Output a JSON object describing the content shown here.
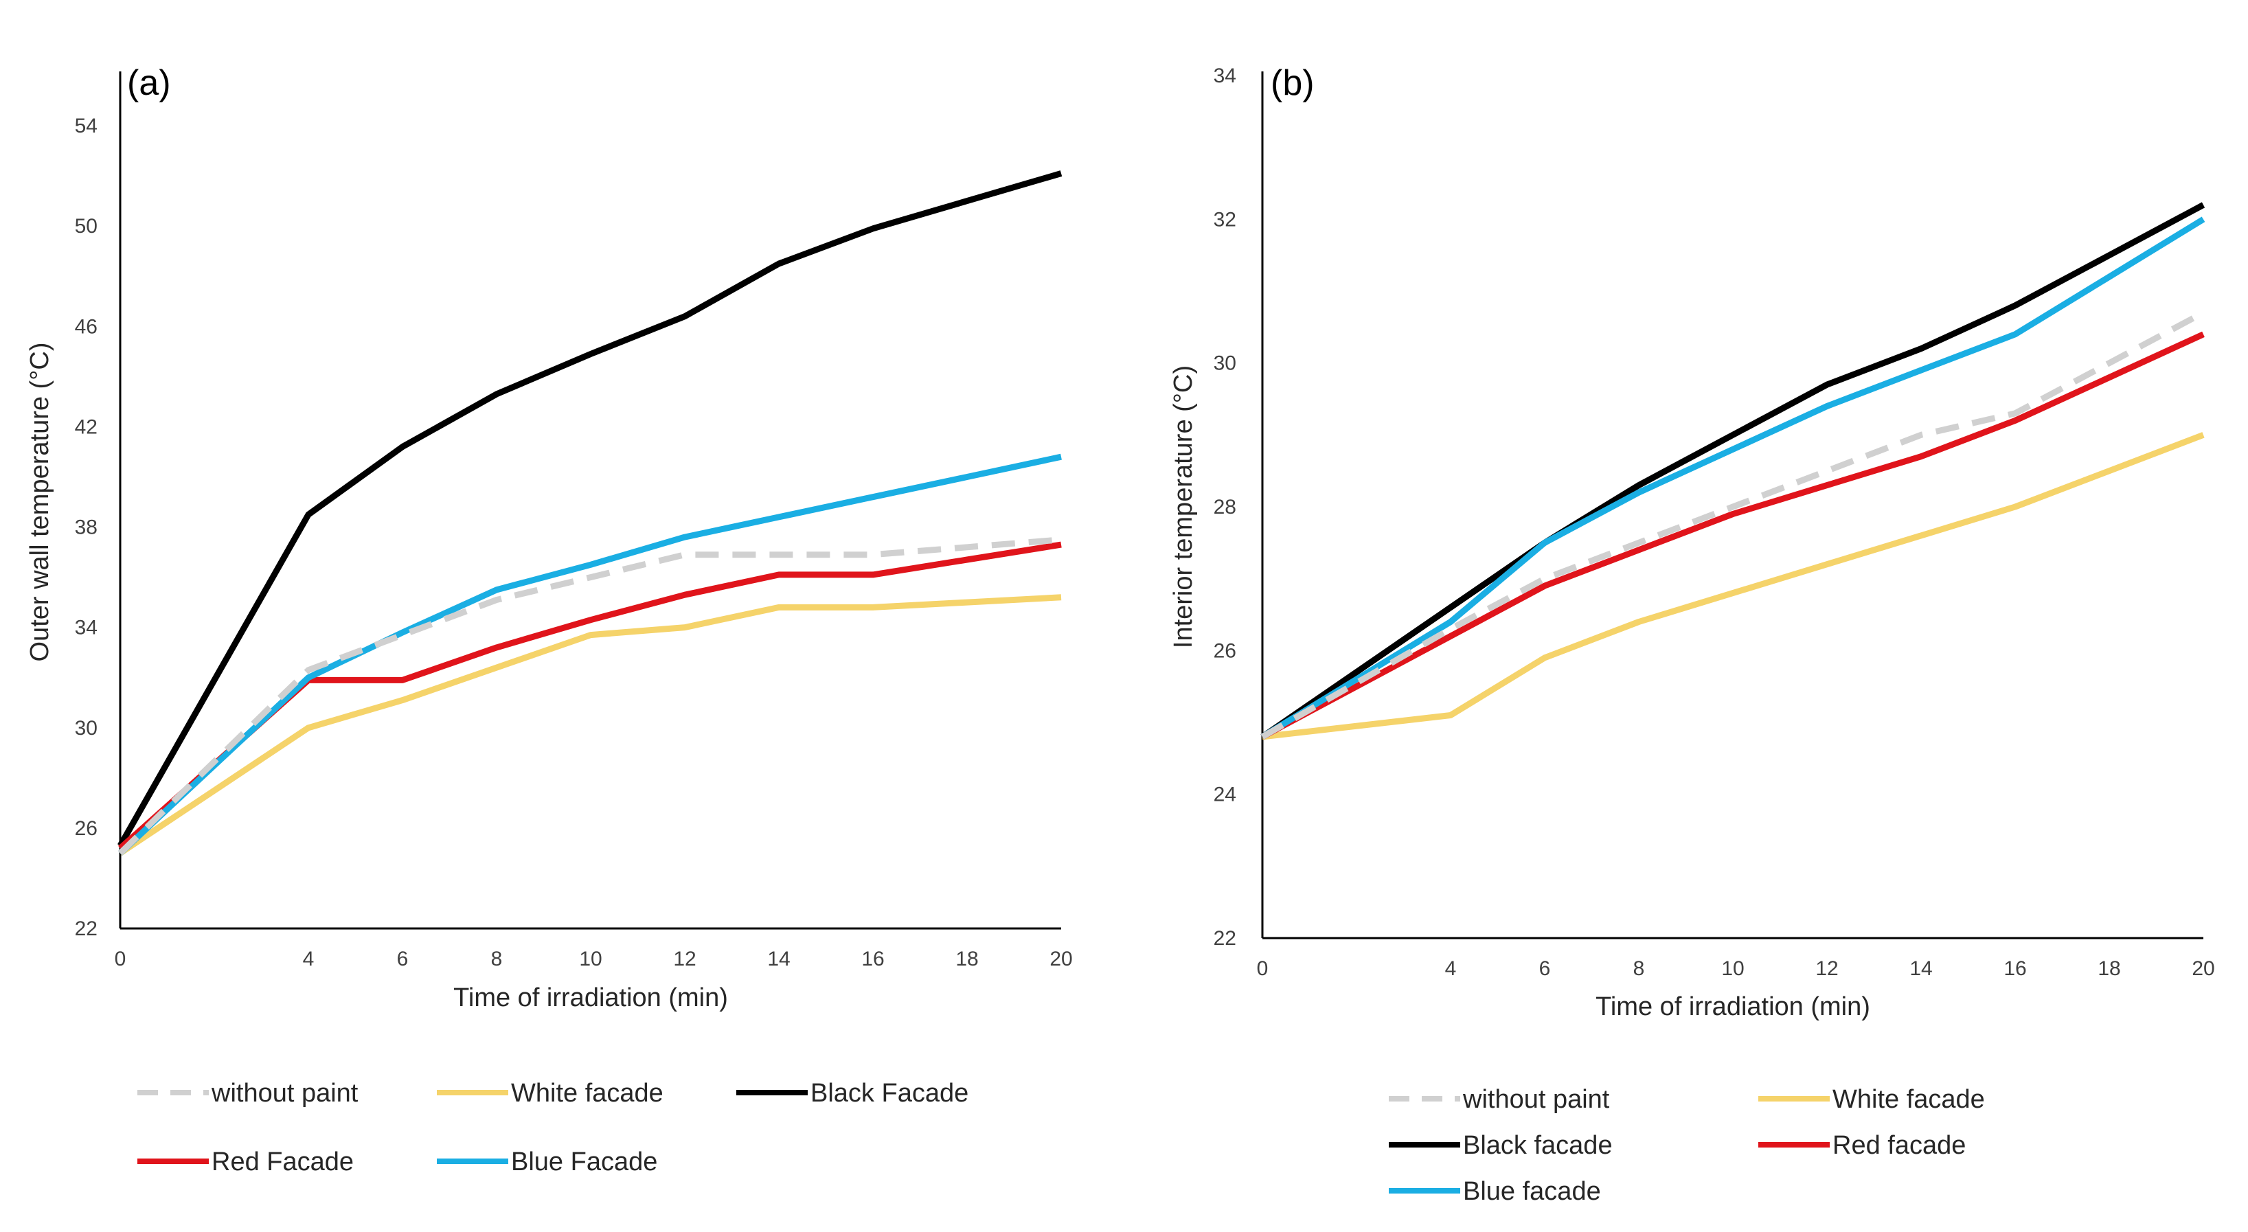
{
  "chart_data": [
    {
      "type": "line",
      "panel_label": "(a)",
      "xlabel": "Time of irradiation (min)",
      "ylabel": "Outer wall temperature (°C)",
      "xlim": [
        0,
        20
      ],
      "ylim": [
        22,
        56
      ],
      "xticks": [
        0,
        4,
        6,
        8,
        10,
        12,
        14,
        16,
        18,
        20
      ],
      "yticks": [
        22,
        26,
        30,
        34,
        38,
        42,
        46,
        50,
        54
      ],
      "grid": false,
      "legend_position": "bottom",
      "series": [
        {
          "name": "without paint",
          "color": "#d0d0d0",
          "dashed": true,
          "x": [
            0,
            4,
            6,
            8,
            10,
            12,
            14,
            16,
            18,
            20
          ],
          "y": [
            25.0,
            32.3,
            33.7,
            35.1,
            36.0,
            36.9,
            36.9,
            36.9,
            37.2,
            37.5
          ]
        },
        {
          "name": "White facade",
          "color": "#f5d36a",
          "dashed": false,
          "x": [
            0,
            4,
            6,
            8,
            10,
            12,
            14,
            16,
            18,
            20
          ],
          "y": [
            25.0,
            30.0,
            31.1,
            32.4,
            33.7,
            34.0,
            34.8,
            34.8,
            35.0,
            35.2
          ]
        },
        {
          "name": "Black Facade",
          "color": "#000000",
          "dashed": false,
          "x": [
            0,
            4,
            6,
            8,
            10,
            12,
            14,
            16,
            18,
            20
          ],
          "y": [
            25.3,
            38.5,
            41.2,
            43.3,
            44.9,
            46.4,
            48.5,
            49.9,
            51.0,
            52.1
          ]
        },
        {
          "name": "Red Facade",
          "color": "#e0141b",
          "dashed": false,
          "x": [
            0,
            4,
            6,
            8,
            10,
            12,
            14,
            16,
            18,
            20
          ],
          "y": [
            25.2,
            31.9,
            31.9,
            33.2,
            34.3,
            35.3,
            36.1,
            36.1,
            36.7,
            37.3
          ]
        },
        {
          "name": "Blue Facade",
          "color": "#1aaee3",
          "dashed": false,
          "x": [
            0,
            4,
            6,
            8,
            10,
            12,
            14,
            16,
            18,
            20
          ],
          "y": [
            25.0,
            32.0,
            33.8,
            35.5,
            36.5,
            37.6,
            38.4,
            39.2,
            40.0,
            40.8
          ]
        }
      ]
    },
    {
      "type": "line",
      "panel_label": "(b)",
      "xlabel": "Time of irradiation (min)",
      "ylabel": "Interior temperature (°C)",
      "xlim": [
        0,
        20
      ],
      "ylim": [
        22,
        34
      ],
      "xticks": [
        0,
        4,
        6,
        8,
        10,
        12,
        14,
        16,
        18,
        20
      ],
      "yticks": [
        22,
        24,
        26,
        28,
        30,
        32,
        34
      ],
      "grid": false,
      "legend_position": "bottom",
      "series": [
        {
          "name": "without paint",
          "color": "#d0d0d0",
          "dashed": true,
          "x": [
            0,
            4,
            6,
            8,
            10,
            12,
            14,
            16,
            18,
            20
          ],
          "y": [
            24.8,
            26.3,
            27.0,
            27.5,
            28.0,
            28.5,
            29.0,
            29.3,
            30.0,
            30.7
          ]
        },
        {
          "name": "White facade",
          "color": "#f5d36a",
          "dashed": false,
          "x": [
            0,
            4,
            6,
            8,
            10,
            12,
            14,
            16,
            18,
            20
          ],
          "y": [
            24.8,
            25.1,
            25.9,
            26.4,
            26.8,
            27.2,
            27.6,
            28.0,
            28.5,
            29.0
          ]
        },
        {
          "name": "Black facade",
          "color": "#000000",
          "dashed": false,
          "x": [
            0,
            4,
            6,
            8,
            10,
            12,
            14,
            16,
            18,
            20
          ],
          "y": [
            24.8,
            26.6,
            27.5,
            28.3,
            29.0,
            29.7,
            30.2,
            30.8,
            31.5,
            32.2
          ]
        },
        {
          "name": "Red facade",
          "color": "#e0141b",
          "dashed": false,
          "x": [
            0,
            4,
            6,
            8,
            10,
            12,
            14,
            16,
            18,
            20
          ],
          "y": [
            24.8,
            26.2,
            26.9,
            27.4,
            27.9,
            28.3,
            28.7,
            29.2,
            29.8,
            30.4
          ]
        },
        {
          "name": "Blue facade",
          "color": "#1aaee3",
          "dashed": false,
          "x": [
            0,
            4,
            6,
            8,
            10,
            12,
            14,
            16,
            18,
            20
          ],
          "y": [
            24.8,
            26.4,
            27.5,
            28.2,
            28.8,
            29.4,
            29.9,
            30.4,
            31.2,
            32.0
          ]
        }
      ]
    }
  ]
}
